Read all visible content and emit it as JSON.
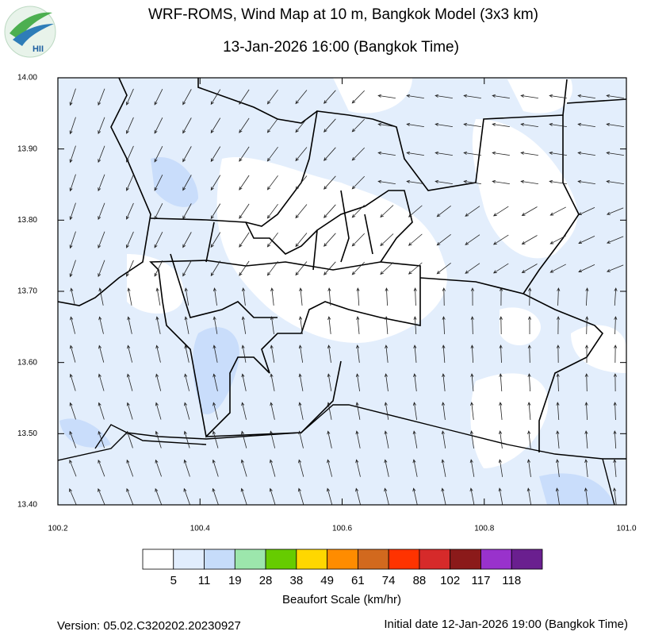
{
  "header": {
    "logo": "HII",
    "title": "WRF-ROMS, Wind Map at 10 m, Bangkok Model (3x3 km)",
    "subtitle": "13-Jan-2026 16:00 (Bangkok Time)"
  },
  "axes": {
    "xticks": [
      "100.2",
      "100.4",
      "100.6",
      "100.8",
      "101.0"
    ],
    "yticks": [
      "14.00",
      "13.90",
      "13.80",
      "13.70",
      "13.60",
      "13.50",
      "13.40"
    ]
  },
  "colorbar": {
    "title": "Beaufort Scale (km/hr)",
    "colors": [
      "#ffffff",
      "#e1edfd",
      "#c6dcfa",
      "#9ce6ac",
      "#66cc00",
      "#ffd700",
      "#ff8c00",
      "#d2691e",
      "#ff3300",
      "#d62a2a",
      "#8b1a1a",
      "#9932cc",
      "#6a1f8f"
    ],
    "labels": [
      5,
      11,
      19,
      28,
      38,
      49,
      61,
      74,
      88,
      102,
      117,
      118
    ]
  },
  "footer": {
    "version": "Version: 05.02.C320202.20230927",
    "initial": "Initial date 12-Jan-2026 19:00 (Bangkok Time)"
  }
}
